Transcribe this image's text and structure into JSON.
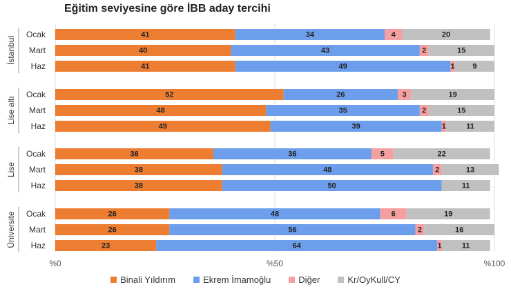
{
  "chart_data": {
    "type": "bar",
    "orientation": "horizontal",
    "stacked": true,
    "title": "Eğitim seviyesine göre İBB aday tercihi",
    "xlim": [
      0,
      100
    ],
    "xticks": [
      "%0",
      "%50",
      "%100"
    ],
    "grid": true,
    "legend_position": "bottom",
    "series": [
      {
        "name": "Binali Yıldırım",
        "color": "#ED7D31"
      },
      {
        "name": "Ekrem İmamoğlu",
        "color": "#6D9EEB"
      },
      {
        "name": "Diğer",
        "color": "#F4A0A0"
      },
      {
        "name": "Kr/OyKull/CY",
        "color": "#C0C0C0"
      }
    ],
    "groups": [
      {
        "name": "İstanbul",
        "rows": [
          {
            "label": "Ocak",
            "values": [
              41,
              34,
              4,
              20
            ]
          },
          {
            "label": "Mart",
            "values": [
              40,
              43,
              2,
              15
            ]
          },
          {
            "label": "Haz",
            "values": [
              41,
              49,
              1,
              9
            ]
          }
        ]
      },
      {
        "name": "Lise altı",
        "rows": [
          {
            "label": "Ocak",
            "values": [
              52,
              26,
              3,
              19
            ]
          },
          {
            "label": "Mart",
            "values": [
              48,
              35,
              2,
              15
            ]
          },
          {
            "label": "Haz",
            "values": [
              49,
              39,
              1,
              11
            ]
          }
        ]
      },
      {
        "name": "Lise",
        "rows": [
          {
            "label": "Ocak",
            "values": [
              36,
              36,
              5,
              22
            ]
          },
          {
            "label": "Mart",
            "values": [
              38,
              48,
              2,
              13
            ]
          },
          {
            "label": "Haz",
            "values": [
              38,
              50,
              0,
              11
            ]
          }
        ]
      },
      {
        "name": "Üniversite",
        "rows": [
          {
            "label": "Ocak",
            "values": [
              26,
              48,
              6,
              19
            ]
          },
          {
            "label": "Mart",
            "values": [
              26,
              56,
              2,
              16
            ]
          },
          {
            "label": "Haz",
            "values": [
              23,
              64,
              1,
              11
            ]
          }
        ]
      }
    ]
  }
}
